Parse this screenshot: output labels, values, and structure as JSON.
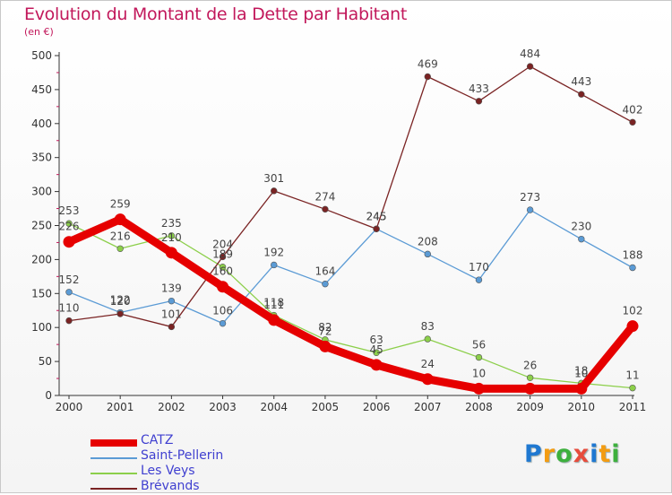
{
  "title": "Evolution du Montant de la Dette par Habitant",
  "subtitle": "(en €)",
  "brand": {
    "text": "Proxiti",
    "colors": [
      "#1f78d1",
      "#f39c12",
      "#3db03d",
      "#e74c3c",
      "#1f78d1",
      "#f39c12",
      "#3db03d"
    ]
  },
  "chart_data": {
    "type": "line",
    "title": "Evolution du Montant de la Dette par Habitant",
    "unit": "(en €)",
    "xlabel": "",
    "ylabel": "",
    "x": [
      "2000",
      "2001",
      "2002",
      "2003",
      "2004",
      "2005",
      "2006",
      "2007",
      "2008",
      "2009",
      "2010",
      "2011"
    ],
    "ylim": [
      0,
      500
    ],
    "yticks": [
      0,
      50,
      100,
      150,
      200,
      250,
      300,
      350,
      400,
      450,
      500
    ],
    "grid": false,
    "legend_position": "bottom-left",
    "series": [
      {
        "name": "CATZ",
        "color": "#e60000",
        "emphasis": true,
        "values": [
          226,
          259,
          210,
          160,
          111,
          72,
          45,
          24,
          10,
          10,
          10,
          102
        ],
        "labels": [
          "226",
          "259",
          "210",
          "160",
          "111",
          "72",
          "45",
          "24",
          "10",
          "",
          "10",
          "102"
        ]
      },
      {
        "name": "Saint-Pellerin",
        "color": "#5b9bd5",
        "values": [
          152,
          122,
          139,
          106,
          192,
          164,
          245,
          208,
          170,
          273,
          230,
          188
        ],
        "labels": [
          "152",
          "122",
          "139",
          "106",
          "192",
          "164",
          "245",
          "208",
          "170",
          "273",
          "230",
          "188"
        ]
      },
      {
        "name": "Les Veys",
        "color": "#8ccf4a",
        "values": [
          253,
          216,
          235,
          189,
          118,
          82,
          63,
          83,
          56,
          26,
          18,
          11
        ],
        "labels": [
          "253",
          "216",
          "235",
          "189",
          "118",
          "82",
          "63",
          "83",
          "56",
          "26",
          "18",
          "11"
        ]
      },
      {
        "name": "Brévands",
        "color": "#7a2323",
        "values": [
          110,
          120,
          101,
          204,
          301,
          274,
          245,
          469,
          433,
          484,
          443,
          402
        ],
        "labels": [
          "110",
          "120",
          "101",
          "204",
          "301",
          "274",
          "245",
          "469",
          "433",
          "484",
          "443",
          "402"
        ]
      }
    ]
  }
}
